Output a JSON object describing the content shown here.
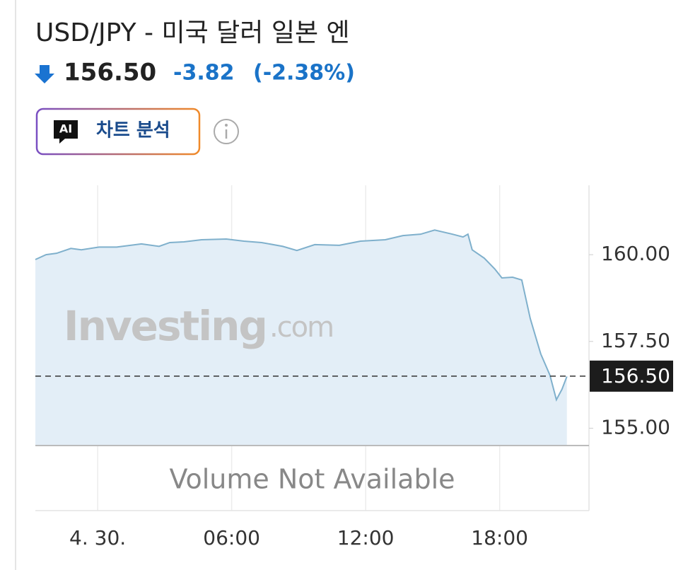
{
  "header": {
    "title": "USD/JPY - 미국 달러 일본 엔",
    "price": "156.50",
    "change": "-3.82",
    "change_pct": "(-2.38%)"
  },
  "button": {
    "icon": "AI",
    "label": "차트 분석"
  },
  "chart_data": {
    "type": "line",
    "watermark": {
      "brand": "Investing",
      "suffix": ".com"
    },
    "volume_note": "Volume Not Available",
    "color": "#7fb0cc",
    "fill": "#e3eef7",
    "x": [
      -2.79,
      -2.31,
      -1.84,
      -1.2,
      -0.73,
      0.06,
      0.85,
      1.96,
      2.75,
      3.23,
      3.86,
      4.65,
      5.76,
      6.55,
      7.34,
      8.29,
      8.92,
      9.72,
      10.82,
      11.77,
      12.88,
      13.67,
      14.46,
      15.09,
      15.89,
      16.36,
      16.58,
      16.77,
      17.31,
      17.78,
      18.1,
      18.58,
      18.99,
      19.37,
      19.84,
      20.25,
      20.54,
      20.79,
      21.01
    ],
    "values": [
      159.86,
      160.0,
      160.04,
      160.18,
      160.14,
      160.22,
      160.22,
      160.31,
      160.24,
      160.35,
      160.37,
      160.43,
      160.45,
      160.39,
      160.35,
      160.24,
      160.12,
      160.29,
      160.27,
      160.39,
      160.43,
      160.55,
      160.59,
      160.71,
      160.59,
      160.51,
      160.59,
      160.14,
      159.9,
      159.59,
      159.33,
      159.35,
      159.27,
      158.16,
      157.14,
      156.53,
      155.82,
      156.12,
      156.49
    ],
    "xlim": [
      -2.79,
      22
    ],
    "xticks": [
      {
        "value": 0,
        "label": "4. 30."
      },
      {
        "value": 6,
        "label": "06:00"
      },
      {
        "value": 12,
        "label": "12:00"
      },
      {
        "value": 18,
        "label": "18:00"
      }
    ],
    "ylim": [
      154.5,
      162
    ],
    "yticks": [
      {
        "value": 155,
        "label": "155.00"
      },
      {
        "value": 157.5,
        "label": "157.50"
      },
      {
        "value": 160,
        "label": "160.00"
      }
    ],
    "current": {
      "value": 156.5,
      "label": "156.50"
    },
    "grid": true
  }
}
